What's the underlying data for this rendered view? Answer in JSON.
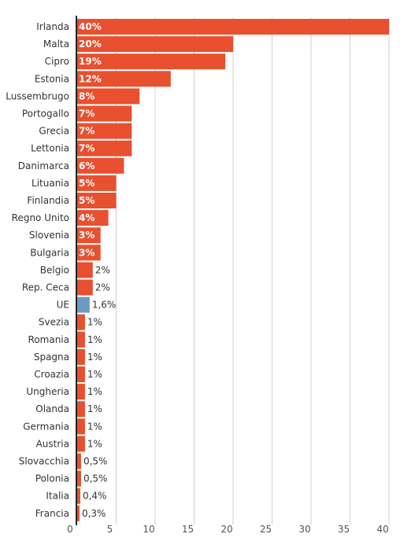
{
  "chart_data": {
    "type": "bar",
    "orientation": "horizontal",
    "categories": [
      "Irlanda",
      "Malta",
      "Cipro",
      "Estonia",
      "Lussembrugo",
      "Portogallo",
      "Grecia",
      "Lettonia",
      "Danimarca",
      "Lituania",
      "Finlandia",
      "Regno Unito",
      "Slovenia",
      "Bulgaria",
      "Belgio",
      "Rep. Ceca",
      "UE",
      "Svezia",
      "Romania",
      "Spagna",
      "Croazia",
      "Ungheria",
      "Olanda",
      "Germania",
      "Austria",
      "Slovacchia",
      "Polonia",
      "Italia",
      "Francia"
    ],
    "values": [
      40,
      20,
      19,
      12,
      8,
      7,
      7,
      7,
      6,
      5,
      5,
      4,
      3,
      3,
      2,
      2,
      1.6,
      1,
      1,
      1,
      1,
      1,
      1,
      1,
      1,
      0.5,
      0.5,
      0.4,
      0.3
    ],
    "bar_lengths": [
      40,
      20,
      19,
      12,
      8,
      7,
      7,
      7,
      6,
      5,
      5,
      4,
      3,
      3,
      2,
      2,
      1.6,
      1,
      1,
      1,
      1,
      1,
      1,
      1,
      1,
      0.5,
      0.5,
      0.4,
      0.3
    ],
    "data_labels": [
      "40%",
      "20%",
      "19%",
      "12%",
      "8%",
      "7%",
      "7%",
      "7%",
      "6%",
      "5%",
      "5%",
      "4%",
      "3%",
      "3%",
      "2%",
      "2%",
      "1,6%",
      "1%",
      "1%",
      "1%",
      "1%",
      "1%",
      "1%",
      "1%",
      "1%",
      "0,5%",
      "0,5%",
      "0,4%",
      "0,3%"
    ],
    "highlight_category": "UE",
    "xlim": [
      0,
      40
    ],
    "xticks": [
      0,
      5,
      10,
      15,
      20,
      25,
      30,
      35,
      40
    ],
    "grid": true,
    "title": "",
    "xlabel": "",
    "ylabel": "",
    "colors": {
      "bar": "#e8502f",
      "highlight": "#6b9bc3",
      "grid": "#d0d0d0",
      "axis": "#222222"
    }
  }
}
